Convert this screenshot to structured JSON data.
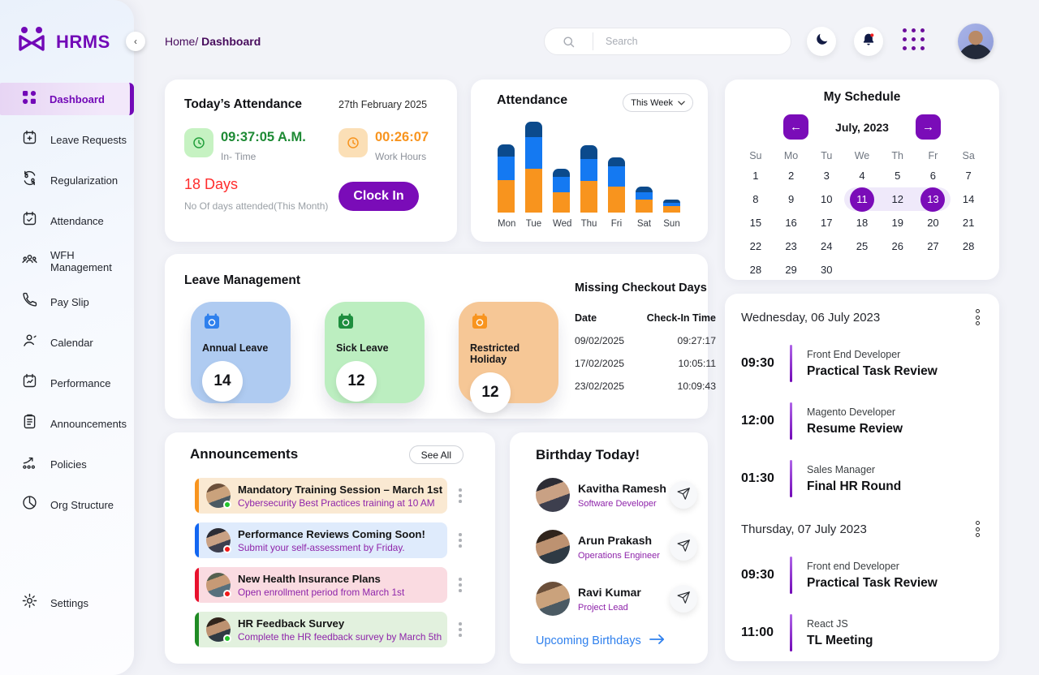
{
  "app": {
    "name": "HRMS"
  },
  "sidebar": {
    "items": [
      {
        "label": "Dashboard",
        "active": true
      },
      {
        "label": "Leave Requests"
      },
      {
        "label": "Regularization"
      },
      {
        "label": "Attendance"
      },
      {
        "label": "WFH Management"
      },
      {
        "label": "Pay Slip"
      },
      {
        "label": "Calendar"
      },
      {
        "label": "Performance"
      },
      {
        "label": "Announcements"
      },
      {
        "label": "Policies"
      },
      {
        "label": "Org Structure"
      },
      {
        "label": "Settings"
      }
    ]
  },
  "header": {
    "breadcrumb": {
      "section": "Home/",
      "page": "Dashboard"
    },
    "search_placeholder": "Search"
  },
  "today_attendance": {
    "title": "Today’s Attendance",
    "date": "27th February 2025",
    "in_time": "09:37:05 A.M.",
    "in_time_label": "In- Time",
    "work_hours": "00:26:07",
    "work_hours_label": "Work Hours",
    "days": "18 Days",
    "days_label": "No Of days attended(This Month)",
    "clock_in_label": "Clock In"
  },
  "attendance_chart_card": {
    "title": "Attendance",
    "filter_label": "This Week"
  },
  "chart_data": {
    "type": "bar",
    "stacked": true,
    "title": "Attendance",
    "categories": [
      "Mon",
      "Tue",
      "Wed",
      "Thu",
      "Fri",
      "Sat",
      "Sun"
    ],
    "series": [
      {
        "name": "orange-segment",
        "color": "#F8941E",
        "values": [
          4.0,
          5.4,
          2.5,
          3.9,
          3.2,
          1.6,
          0.8
        ]
      },
      {
        "name": "blue-segment",
        "color": "#1479F2",
        "values": [
          2.9,
          3.9,
          1.9,
          2.7,
          2.5,
          0.9,
          0.4
        ]
      },
      {
        "name": "navy-segment",
        "color": "#0B4A8C",
        "values": [
          1.5,
          1.9,
          1.0,
          1.7,
          1.1,
          0.7,
          0.4
        ]
      }
    ],
    "ylim": [
      0,
      12
    ],
    "xlabel": "",
    "ylabel": "",
    "legend": "none",
    "grid": false
  },
  "my_schedule": {
    "title": "My Schedule",
    "month_label": "July, 2023",
    "prev_icon": "←",
    "next_icon": "→",
    "weekdays": [
      "Su",
      "Mo",
      "Tu",
      "We",
      "Th",
      "Fr",
      "Sa"
    ],
    "weeks": [
      [
        1,
        2,
        3,
        4,
        5,
        6,
        7
      ],
      [
        8,
        9,
        10,
        11,
        12,
        13,
        14
      ],
      [
        15,
        16,
        17,
        18,
        19,
        20,
        21
      ],
      [
        22,
        23,
        24,
        25,
        26,
        27,
        28
      ],
      [
        28,
        29,
        30
      ]
    ],
    "selected_days": [
      11,
      13
    ],
    "range_days": [
      11,
      12,
      13
    ]
  },
  "leave_management": {
    "title": "Leave Management",
    "tiles": [
      {
        "label": "Annual Leave",
        "count": "14",
        "bg": "#AFCBF1",
        "icon_color": "#2F80ED"
      },
      {
        "label": "Sick Leave",
        "count": "12",
        "bg": "#BCEEC0",
        "icon_color": "#1E8E3E"
      },
      {
        "label": "Restricted Holiday",
        "count": "12",
        "bg": "#F6C796",
        "icon_color": "#F8941E"
      }
    ]
  },
  "missing_checkout": {
    "title": "Missing Checkout Days",
    "columns": [
      "Date",
      "Check-In Time"
    ],
    "rows": [
      [
        "09/02/2025",
        "09:27:17"
      ],
      [
        "17/02/2025",
        "10:05:11"
      ],
      [
        "23/02/2025",
        "10:09:43"
      ]
    ]
  },
  "announcements": {
    "title": "Announcements",
    "see_all_label": "See All",
    "items": [
      {
        "title": "Mandatory Training Session – March 1st",
        "subtitle": "Cybersecurity Best Practices training at 10 AM",
        "bar": "#F8941E",
        "bg": "#FAE9D2",
        "status": "#22C32A"
      },
      {
        "title": "Performance Reviews Coming Soon!",
        "subtitle": "Submit your self-assessment by Friday.",
        "bar": "#1266F1",
        "bg": "#DFEBFC",
        "status": "#F01818"
      },
      {
        "title": "New Health Insurance Plans",
        "subtitle": "Open enrollment period from March 1st",
        "bar": "#E8112D",
        "bg": "#FADBE1",
        "status": "#F01818"
      },
      {
        "title": "HR Feedback Survey",
        "subtitle": "Complete the HR feedback survey by March 5th",
        "bar": "#1F8B24",
        "bg": "#E2F1DE",
        "status": "#22C32A"
      }
    ]
  },
  "birthdays": {
    "title": "Birthday Today!",
    "people": [
      {
        "name": "Kavitha Ramesh",
        "role": "Software Developer"
      },
      {
        "name": "Arun Prakash",
        "role": "Operations Engineer"
      },
      {
        "name": "Ravi Kumar",
        "role": "Project Lead"
      }
    ],
    "link_label": "Upcoming Birthdays"
  },
  "schedule_panel": {
    "days": [
      {
        "date": "Wednesday, 06 July 2023",
        "events": [
          {
            "time": "09:30",
            "role": "Front End Developer",
            "title": "Practical Task Review"
          },
          {
            "time": "12:00",
            "role": "Magento Developer",
            "title": "Resume Review"
          },
          {
            "time": "01:30",
            "role": "Sales Manager",
            "title": "Final HR Round"
          }
        ]
      },
      {
        "date": "Thursday, 07 July 2023",
        "events": [
          {
            "time": "09:30",
            "role": "Front end Developer",
            "title": "Practical Task Review"
          },
          {
            "time": "11:00",
            "role": "React JS",
            "title": "TL Meeting"
          }
        ]
      }
    ]
  },
  "colors": {
    "accent_purple": "#7A0CB8",
    "link_blue": "#2F80ED",
    "in_time_green": "#1D8A34",
    "work_hours_orange": "#F8941E",
    "alert_red": "#FF2D2D"
  }
}
